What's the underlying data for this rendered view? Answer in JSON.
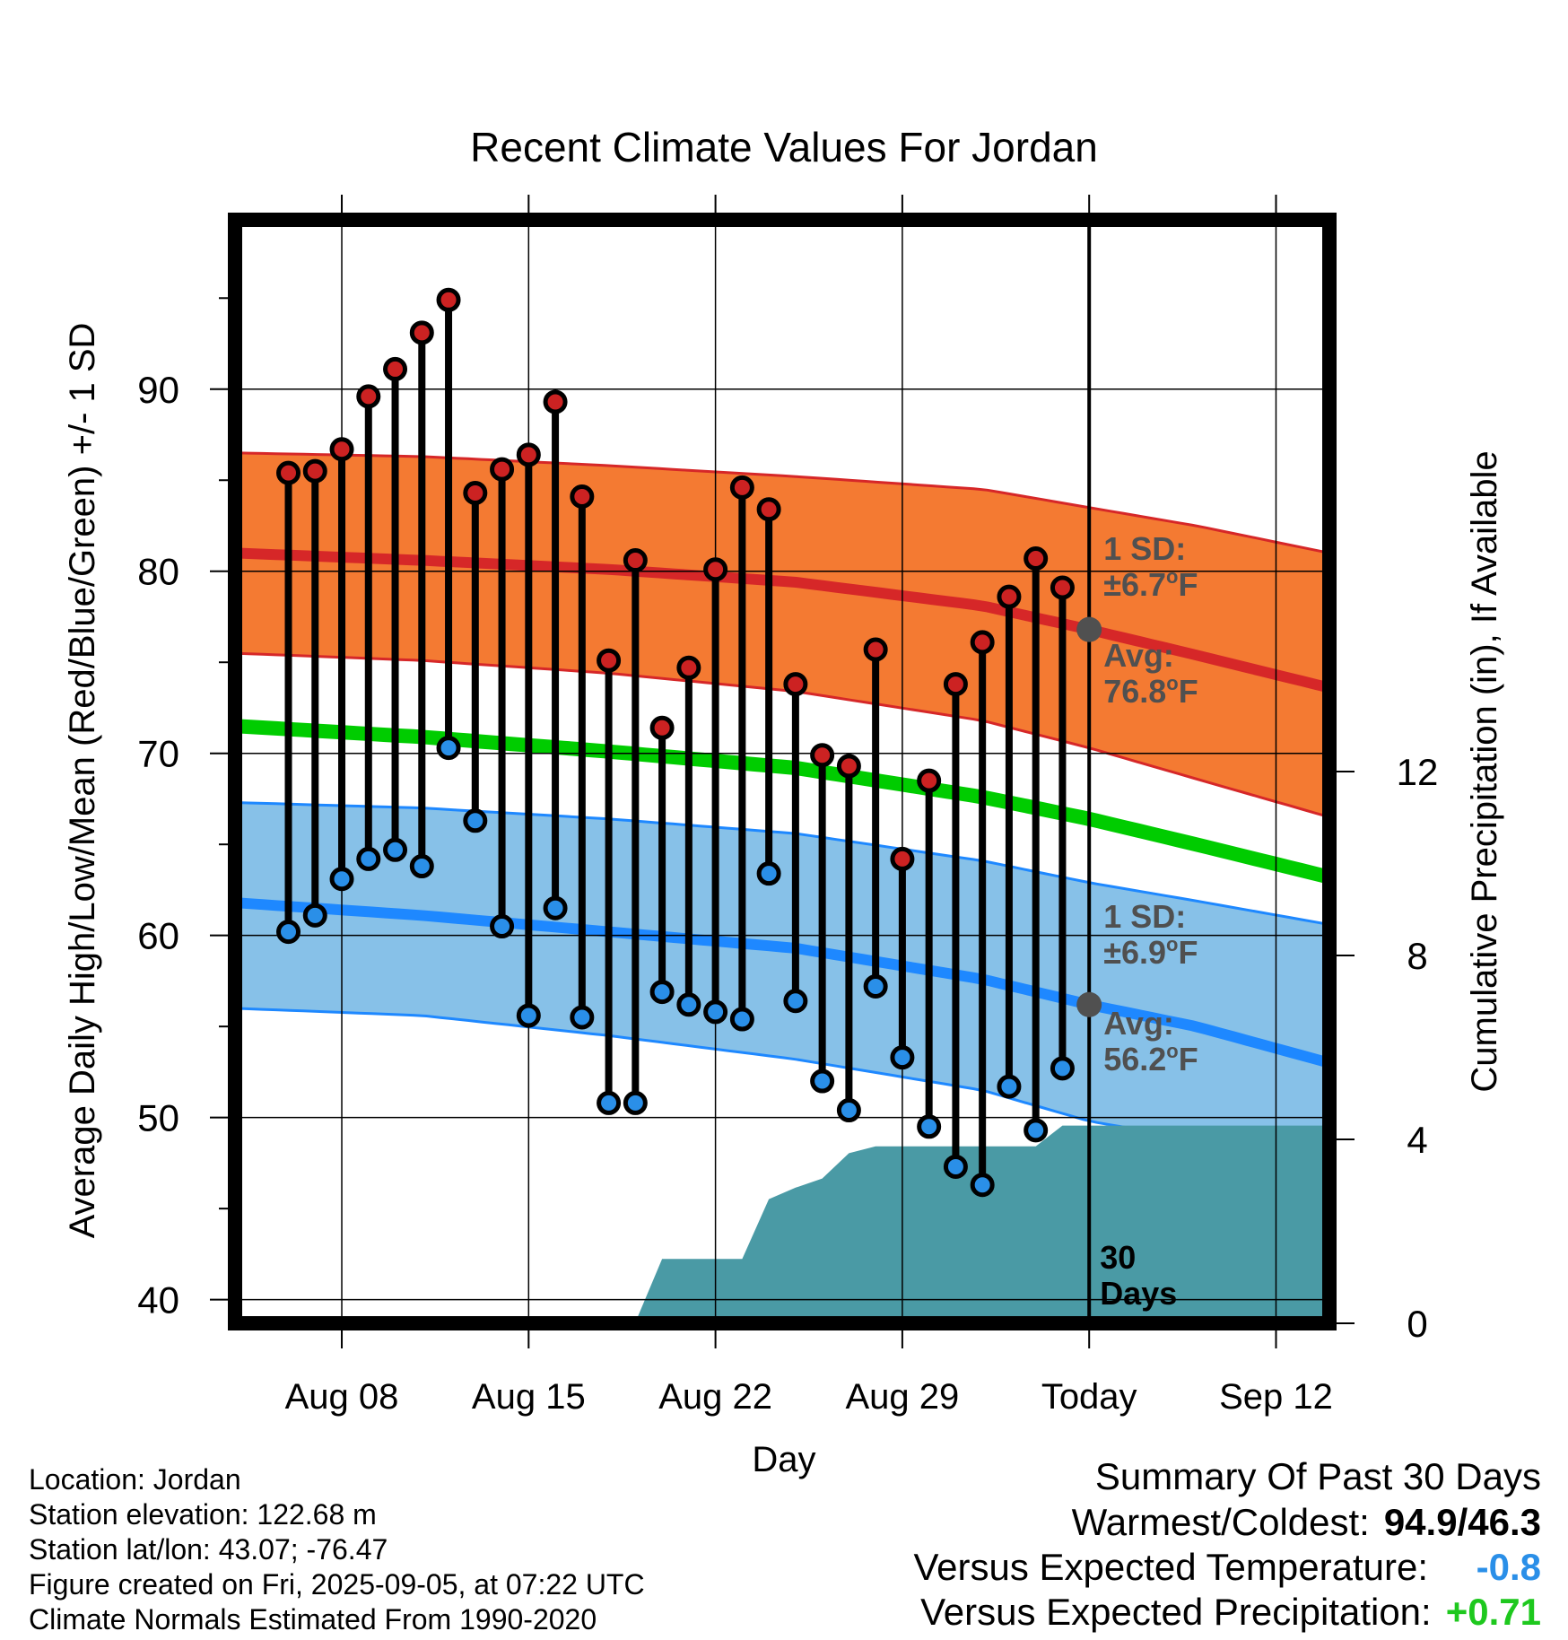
{
  "chart_data": {
    "type": "line",
    "title": "Recent Climate Values For Jordan",
    "xlabel": "Day",
    "ylabel": "Average Daily High/Low/Mean (Red/Blue/Green) +/- 1 SD",
    "y2label": "Cumulative Precipitation (in), If Available",
    "ylim": [
      38.7,
      99.3
    ],
    "y2lim": [
      0,
      24
    ],
    "xlim": [
      "2025-08-04",
      "2025-09-14"
    ],
    "x_tick_labels": [
      "Aug 08",
      "Aug 15",
      "Aug 22",
      "Aug 29",
      "Today",
      "Sep 12"
    ],
    "x_tick_dates": [
      "2025-08-08",
      "2025-08-15",
      "2025-08-22",
      "2025-08-29",
      "2025-09-05",
      "2025-09-12"
    ],
    "y_ticks": [
      40,
      50,
      60,
      70,
      80,
      90
    ],
    "y_minor_ticks": [
      45,
      55,
      65,
      75,
      85,
      95
    ],
    "y2_ticks": [
      0,
      4,
      8,
      12
    ],
    "grid": true,
    "today": "2025-09-05",
    "today_label": "Today",
    "window_label": [
      "30",
      "Days"
    ],
    "colors": {
      "high_band": "#f47a32",
      "high_line": "#d62728",
      "high_band_edge": "#d62728",
      "low_band": "#87c1e8",
      "low_line": "#1e88ff",
      "low_band_edge": "#1e88ff",
      "mean_line": "#00cc00",
      "precip": "#4a9aa5",
      "obs_high_marker": "#cc2222",
      "obs_low_marker": "#2a8fe8",
      "annotation": "#505050"
    },
    "normals": {
      "dates": [
        "2025-08-04",
        "2025-08-11",
        "2025-08-18",
        "2025-08-25",
        "2025-09-01",
        "2025-09-05",
        "2025-09-09",
        "2025-09-14"
      ],
      "high_mean": [
        81.0,
        80.6,
        80.1,
        79.4,
        78.1,
        76.8,
        75.4,
        73.6
      ],
      "high_upper": [
        86.5,
        86.3,
        85.8,
        85.2,
        84.5,
        83.5,
        82.5,
        81.0
      ],
      "high_lower": [
        75.5,
        75.1,
        74.4,
        73.4,
        71.8,
        70.3,
        68.6,
        66.5
      ],
      "low_mean": [
        61.8,
        61.1,
        60.2,
        59.3,
        57.6,
        56.2,
        55.0,
        53.0
      ],
      "low_upper": [
        67.3,
        67.0,
        66.4,
        65.6,
        64.1,
        62.9,
        61.9,
        60.6
      ],
      "low_lower": [
        56.0,
        55.6,
        54.5,
        53.2,
        51.5,
        49.8,
        48.8,
        47.0
      ],
      "mean": [
        71.5,
        70.9,
        70.1,
        69.2,
        67.6,
        66.4,
        65.0,
        63.2
      ]
    },
    "series": [
      {
        "name": "High",
        "x": [
          "2025-08-06",
          "2025-08-07",
          "2025-08-08",
          "2025-08-09",
          "2025-08-10",
          "2025-08-11",
          "2025-08-12",
          "2025-08-13",
          "2025-08-14",
          "2025-08-15",
          "2025-08-16",
          "2025-08-17",
          "2025-08-18",
          "2025-08-19",
          "2025-08-20",
          "2025-08-21",
          "2025-08-22",
          "2025-08-23",
          "2025-08-24",
          "2025-08-25",
          "2025-08-26",
          "2025-08-27",
          "2025-08-28",
          "2025-08-29",
          "2025-08-30",
          "2025-08-31",
          "2025-09-01",
          "2025-09-02",
          "2025-09-03",
          "2025-09-04"
        ],
        "values": [
          85.4,
          85.5,
          86.7,
          89.6,
          91.1,
          93.1,
          94.9,
          84.3,
          85.6,
          86.4,
          89.3,
          84.1,
          75.1,
          80.6,
          71.4,
          74.7,
          80.1,
          84.6,
          83.4,
          73.8,
          69.9,
          69.3,
          75.7,
          64.2,
          68.5,
          73.8,
          76.1,
          78.6,
          80.7,
          79.1
        ]
      },
      {
        "name": "Low",
        "x": [
          "2025-08-06",
          "2025-08-07",
          "2025-08-08",
          "2025-08-09",
          "2025-08-10",
          "2025-08-11",
          "2025-08-12",
          "2025-08-13",
          "2025-08-14",
          "2025-08-15",
          "2025-08-16",
          "2025-08-17",
          "2025-08-18",
          "2025-08-19",
          "2025-08-20",
          "2025-08-21",
          "2025-08-22",
          "2025-08-23",
          "2025-08-24",
          "2025-08-25",
          "2025-08-26",
          "2025-08-27",
          "2025-08-28",
          "2025-08-29",
          "2025-08-30",
          "2025-08-31",
          "2025-09-01",
          "2025-09-02",
          "2025-09-03",
          "2025-09-04"
        ],
        "values": [
          60.2,
          61.1,
          63.1,
          64.2,
          64.7,
          63.8,
          70.3,
          66.3,
          60.5,
          55.6,
          61.5,
          55.5,
          50.8,
          50.8,
          56.9,
          56.2,
          55.8,
          55.4,
          63.4,
          56.4,
          52.0,
          50.4,
          57.2,
          53.3,
          49.5,
          47.3,
          46.3,
          51.7,
          49.3,
          52.7
        ]
      },
      {
        "name": "Cumulative Precipitation",
        "x": [
          "2025-08-04",
          "2025-08-15",
          "2025-08-16",
          "2025-08-17",
          "2025-08-18",
          "2025-08-19",
          "2025-08-20",
          "2025-08-21",
          "2025-08-22",
          "2025-08-23",
          "2025-08-24",
          "2025-08-25",
          "2025-08-26",
          "2025-08-27",
          "2025-08-28",
          "2025-08-29",
          "2025-08-30",
          "2025-08-31",
          "2025-09-01",
          "2025-09-02",
          "2025-09-03",
          "2025-09-04",
          "2025-09-05",
          "2025-09-14"
        ],
        "values": [
          0,
          0,
          0,
          0.02,
          0.02,
          0.02,
          1.4,
          1.4,
          1.4,
          1.4,
          2.7,
          2.95,
          3.15,
          3.7,
          3.85,
          3.85,
          3.85,
          3.85,
          3.85,
          3.85,
          3.85,
          4.3,
          4.3,
          4.3
        ]
      }
    ],
    "annotations": {
      "high_sd": [
        "1 SD:",
        "±6.7",
        "o",
        "F"
      ],
      "high_avg": [
        "Avg:",
        "76.8",
        "o",
        "F"
      ],
      "low_sd": [
        "1 SD:",
        "±6.9",
        "o",
        "F"
      ],
      "low_avg": [
        "Avg:",
        "56.2",
        "o",
        "F"
      ]
    }
  },
  "info": {
    "location": "Location: Jordan",
    "elevation": "Station elevation: 122.68 m",
    "latlon": "Station lat/lon: 43.07; -76.47",
    "created": "Figure created on Fri, 2025-09-05, at 07:22 UTC",
    "normals": "Climate Normals Estimated From 1990-2020"
  },
  "summary": {
    "title": "Summary Of Past 30 Days",
    "warm_cold_label": "Warmest/Coldest:",
    "warm_cold_value": "94.9/46.3",
    "temp_label": "Versus Expected Temperature:",
    "temp_value": "-0.8",
    "temp_color": "#2a8fe8",
    "precip_label": "Versus Expected Precipitation:",
    "precip_value": "+0.71",
    "precip_color": "#1ec81e"
  }
}
